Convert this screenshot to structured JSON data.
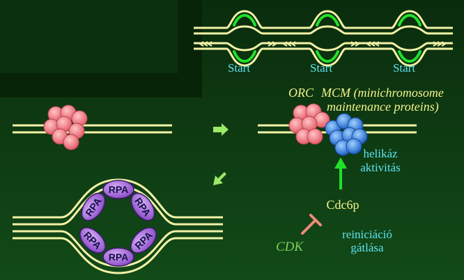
{
  "start_labels": [
    "Start",
    "Start",
    "Start"
  ],
  "orc_label": "ORC",
  "mcm_line1": "MCM (minichromosome",
  "mcm_line2": "maintenance proteins)",
  "helicase_line1": "helikáz",
  "helicase_line2": "aktivitás",
  "cdc6p_label": "Cdc6p",
  "reinit_line1": "reiniciáció",
  "reinit_line2": "gátlása",
  "cdk_label": "CDK",
  "rpa_label": "RPA",
  "colors": {
    "background": "#0d3a12",
    "dna": "#f2f2a6",
    "orc": "#f08a8e",
    "mcm": "#3a87e0",
    "rpa": "#a86cdb",
    "arrow_green": "#22e02a",
    "cyan_text": "#5fe3f0",
    "yellow_text": "#f4f48c",
    "cdk_text": "#7ed15a",
    "inhibit": "#f08a7a"
  }
}
